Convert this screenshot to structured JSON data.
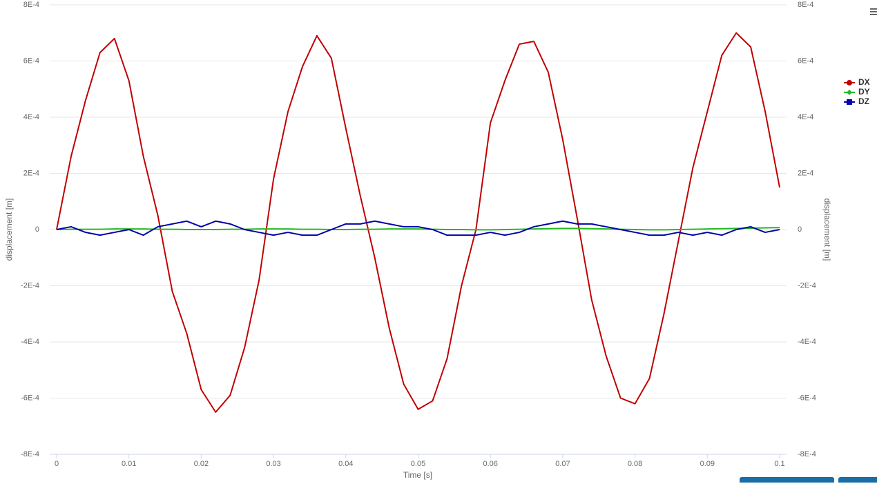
{
  "chart_data": {
    "type": "line",
    "x_label": "Time [s]",
    "y_label": "displacement [m]",
    "y2_label": "displacement [m]",
    "x": [
      0,
      0.002,
      0.004,
      0.006,
      0.008,
      0.01,
      0.012,
      0.014,
      0.016,
      0.018,
      0.02,
      0.022,
      0.024,
      0.026,
      0.028,
      0.03,
      0.032,
      0.034,
      0.036,
      0.038,
      0.04,
      0.042,
      0.044,
      0.046,
      0.048,
      0.05,
      0.052,
      0.054,
      0.056,
      0.058,
      0.06,
      0.062,
      0.064,
      0.066,
      0.068,
      0.07,
      0.072,
      0.074,
      0.076,
      0.078,
      0.08,
      0.082,
      0.084,
      0.086,
      0.088,
      0.09,
      0.092,
      0.094,
      0.096,
      0.098,
      0.1
    ],
    "series": [
      {
        "name": "DX",
        "color": "#c00000",
        "marker": "circle",
        "values": [
          0,
          0.00026,
          0.00046,
          0.00063,
          0.00068,
          0.00053,
          0.00026,
          5e-05,
          -0.00022,
          -0.00037,
          -0.00057,
          -0.00065,
          -0.00059,
          -0.00042,
          -0.00018,
          0.00018,
          0.00042,
          0.00058,
          0.00069,
          0.00061,
          0.00036,
          0.00012,
          -0.0001,
          -0.00035,
          -0.00055,
          -0.00064,
          -0.00061,
          -0.00046,
          -0.0002,
          0,
          0.00038,
          0.00053,
          0.00066,
          0.00067,
          0.00056,
          0.00032,
          4e-05,
          -0.00025,
          -0.00045,
          -0.0006,
          -0.00062,
          -0.00053,
          -0.0003,
          -4e-05,
          0.00022,
          0.00042,
          0.00062,
          0.0007,
          0.00065,
          0.00042,
          0.00015
        ]
      },
      {
        "name": "DY",
        "color": "#22bb22",
        "marker": "diamond",
        "values": [
          0,
          1e-06,
          1e-06,
          1e-06,
          2e-06,
          2e-06,
          2e-06,
          1e-06,
          1e-06,
          0,
          0,
          0,
          1e-06,
          1e-06,
          2e-06,
          2e-06,
          2e-06,
          1e-06,
          1e-06,
          0,
          0,
          1e-06,
          1e-06,
          2e-06,
          2e-06,
          2e-06,
          1e-06,
          0,
          0,
          -1e-06,
          -1e-06,
          0,
          1e-06,
          2e-06,
          3e-06,
          4e-06,
          4e-06,
          3e-06,
          2e-06,
          1e-06,
          0,
          -1e-06,
          -1e-06,
          0,
          1e-06,
          2e-06,
          3e-06,
          4e-06,
          5e-06,
          6e-06,
          7e-06
        ]
      },
      {
        "name": "DZ",
        "color": "#0000aa",
        "marker": "square",
        "values": [
          0,
          1e-05,
          -1e-05,
          -2e-05,
          -1e-05,
          0,
          -2e-05,
          1e-05,
          2e-05,
          3e-05,
          1e-05,
          3e-05,
          2e-05,
          0,
          -1e-05,
          -2e-05,
          -1e-05,
          -2e-05,
          -2e-05,
          0,
          2e-05,
          2e-05,
          3e-05,
          2e-05,
          1e-05,
          1e-05,
          0,
          -2e-05,
          -2e-05,
          -2e-05,
          -1e-05,
          -2e-05,
          -1e-05,
          1e-05,
          2e-05,
          3e-05,
          2e-05,
          2e-05,
          1e-05,
          0,
          -1e-05,
          -2e-05,
          -2e-05,
          -1e-05,
          -2e-05,
          -1e-05,
          -2e-05,
          0,
          1e-05,
          -1e-05,
          0
        ]
      }
    ],
    "xlim": [
      0,
      0.1
    ],
    "xticks": [
      0,
      0.01,
      0.02,
      0.03,
      0.04,
      0.05,
      0.06,
      0.07,
      0.08,
      0.09,
      0.1
    ],
    "ylim": [
      -0.0008,
      0.0008
    ],
    "yticks": [
      {
        "value": -0.0008,
        "label": "-8E-4"
      },
      {
        "value": -0.0006,
        "label": "-6E-4"
      },
      {
        "value": -0.0004,
        "label": "-4E-4"
      },
      {
        "value": -0.0002,
        "label": "-2E-4"
      },
      0,
      {
        "value": 0.0002,
        "label": "2E-4"
      },
      {
        "value": 0.0004,
        "label": "4E-4"
      },
      {
        "value": 0.0006,
        "label": "6E-4"
      },
      {
        "value": 0.0008,
        "label": "8E-4"
      }
    ],
    "y2lim": [
      -0.0008,
      0.0008
    ],
    "y2ticks": [
      {
        "value": -0.0008,
        "label": "-8E-4"
      },
      {
        "value": -0.0006,
        "label": "-6E-4"
      },
      {
        "value": -0.0004,
        "label": "-4E-4"
      },
      {
        "value": -0.0002,
        "label": "-2E-4"
      },
      0,
      {
        "value": 0.0002,
        "label": "2E-4"
      },
      {
        "value": 0.0004,
        "label": "4E-4"
      },
      {
        "value": 0.0006,
        "label": "6E-4"
      },
      {
        "value": 0.0008,
        "label": "8E-4"
      }
    ],
    "grid": true,
    "legend": "right"
  }
}
